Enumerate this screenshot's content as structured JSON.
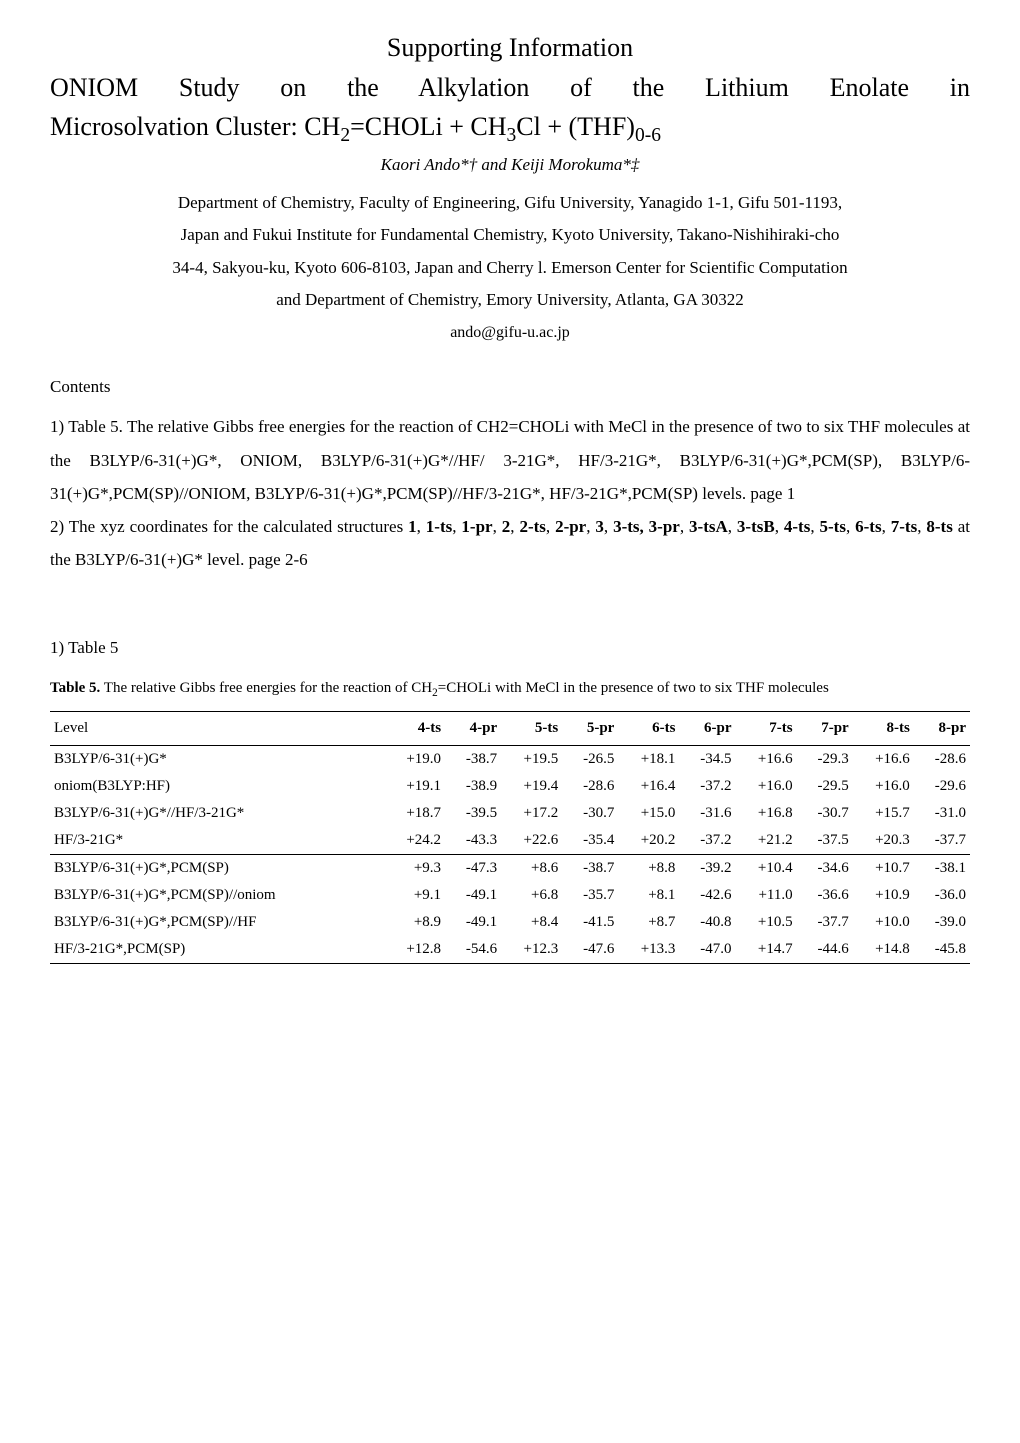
{
  "header": {
    "supporting_info": "Supporting Information",
    "title_line1": "ONIOM Study on the Alkylation of the Lithium Enolate in",
    "title_line2_pre": "Microsolvation Cluster: CH",
    "title_line2_sub1": "2",
    "title_line2_mid1": "=CHOLi + CH",
    "title_line2_sub2": "3",
    "title_line2_mid2": "Cl + (THF)",
    "title_line2_sub3": "0-6",
    "authors": "Kaori Ando*† and Keiji Morokuma*‡",
    "affil1": "Department of Chemistry, Faculty of Engineering, Gifu University, Yanagido 1-1, Gifu 501-1193,",
    "affil2": "Japan and Fukui Institute for Fundamental Chemistry, Kyoto University, Takano-Nishihiraki-cho",
    "affil3": "34-4, Sakyou-ku, Kyoto 606-8103, Japan and Cherry l. Emerson Center for Scientific Computation",
    "affil4": "and Department of Chemistry, Emory University, Atlanta, GA 30322",
    "email": "ando@gifu-u.ac.jp"
  },
  "contents": {
    "heading": "Contents",
    "para1_a": "1) Table 5. The relative Gibbs free energies for the reaction of CH2=CHOLi with MeCl in the presence of two to six THF molecules at the B3LYP/6-31(+)G*, ONIOM, B3LYP/6-31(+)G*//HF/ 3-21G*, HF/3-21G*, B3LYP/6-31(+)G*,PCM(SP), B3LYP/6-31(+)G*,PCM(SP)//ONIOM, B3LYP/6-31(+)G*,PCM(SP)//HF/3-21G*, HF/3-21G*,PCM(SP) levels.        page 1",
    "para2_pre": "2) The xyz coordinates for the calculated structures ",
    "para2_bold": "1",
    "para2_a": ", ",
    "para2_b1": "1-ts",
    "para2_b": ", ",
    "para2_b2": "1-pr",
    "para2_c": ", ",
    "para2_b3": "2",
    "para2_d": ", ",
    "para2_b4": "2-ts",
    "para2_e": ", ",
    "para2_b5": "2-pr",
    "para2_f": ", ",
    "para2_b6": "3",
    "para2_g": ", ",
    "para2_b7": "3-ts, 3-pr",
    "para2_h": ", ",
    "para2_b8": "3-tsA",
    "para2_i": ", ",
    "para2_b9": "3-tsB",
    "para2_j": ", ",
    "para2_b10": "4-ts",
    "para2_k": ", ",
    "para2_b11": "5-ts",
    "para2_l": ", ",
    "para2_b12": "6-ts",
    "para2_m": ", ",
    "para2_b13": "7-ts",
    "para2_n": ", ",
    "para2_b14": "8-ts",
    "para2_post": " at the B3LYP/6-31(+)G* level.                 page 2-6"
  },
  "table_section": {
    "heading": "1) Table 5",
    "caption_bold": "Table 5.",
    "caption_text1": "  The relative Gibbs free energies for the reaction of CH",
    "caption_sub": "2",
    "caption_text2": "=CHOLi with MeCl in the presence of two to six THF molecules"
  },
  "table": {
    "columns": [
      "Level",
      "4-ts",
      "4-pr",
      "5-ts",
      "5-pr",
      "6-ts",
      "6-pr",
      "7-ts",
      "7-pr",
      "8-ts",
      "8-pr"
    ],
    "rows_group1": [
      [
        "B3LYP/6-31(+)G*",
        "+19.0",
        "-38.7",
        "+19.5",
        "-26.5",
        "+18.1",
        "-34.5",
        "+16.6",
        "-29.3",
        "+16.6",
        "-28.6"
      ],
      [
        "oniom(B3LYP:HF)",
        "+19.1",
        "-38.9",
        "+19.4",
        "-28.6",
        "+16.4",
        "-37.2",
        "+16.0",
        "-29.5",
        "+16.0",
        "-29.6"
      ],
      [
        "B3LYP/6-31(+)G*//HF/3-21G*",
        "+18.7",
        "-39.5",
        "+17.2",
        "-30.7",
        "+15.0",
        "-31.6",
        "+16.8",
        "-30.7",
        "+15.7",
        "-31.0"
      ],
      [
        "HF/3-21G*",
        "+24.2",
        "-43.3",
        "+22.6",
        "-35.4",
        "+20.2",
        "-37.2",
        "+21.2",
        "-37.5",
        "+20.3",
        "-37.7"
      ]
    ],
    "rows_group2": [
      [
        "B3LYP/6-31(+)G*,PCM(SP)",
        "+9.3",
        "-47.3",
        "+8.6",
        "-38.7",
        "+8.8",
        "-39.2",
        "+10.4",
        "-34.6",
        "+10.7",
        "-38.1"
      ],
      [
        "B3LYP/6-31(+)G*,PCM(SP)//oniom",
        "+9.1",
        "-49.1",
        "+6.8",
        "-35.7",
        "+8.1",
        "-42.6",
        "+11.0",
        "-36.6",
        "+10.9",
        "-36.0"
      ],
      [
        "B3LYP/6-31(+)G*,PCM(SP)//HF",
        "+8.9",
        "-49.1",
        "+8.4",
        "-41.5",
        "+8.7",
        "-40.8",
        "+10.5",
        "-37.7",
        "+10.0",
        "-39.0"
      ],
      [
        "HF/3-21G*,PCM(SP)",
        "+12.8",
        "-54.6",
        "+12.3",
        "-47.6",
        "+13.3",
        "-47.0",
        "+14.7",
        "-44.6",
        "+14.8",
        "-45.8"
      ]
    ]
  }
}
